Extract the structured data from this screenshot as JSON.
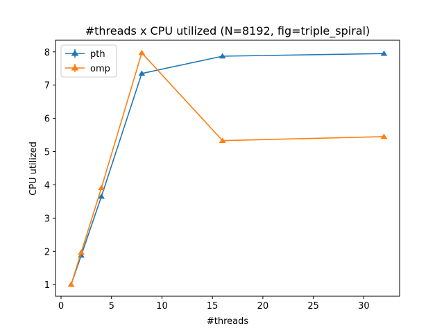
{
  "chart_data": {
    "type": "line",
    "title": "#threads x CPU utilized (N=8192, fig=triple_spiral)",
    "xlabel": "#threads",
    "ylabel": "CPU utilized",
    "xlim": [
      -0.55,
      33.55
    ],
    "ylim": [
      0.65,
      8.35
    ],
    "xticks": [
      0,
      5,
      10,
      15,
      20,
      25,
      30
    ],
    "yticks": [
      1,
      2,
      3,
      4,
      5,
      6,
      7,
      8
    ],
    "grid": false,
    "legend_position": "top-left",
    "marker": "triangle-up",
    "x": [
      1,
      2,
      4,
      8,
      16,
      32
    ],
    "series": [
      {
        "name": "pth",
        "color": "#1f77b4",
        "values": [
          1.0,
          1.88,
          3.65,
          7.35,
          7.87,
          7.95
        ]
      },
      {
        "name": "omp",
        "color": "#ff7f0e",
        "values": [
          1.0,
          1.97,
          3.91,
          7.97,
          5.33,
          5.45
        ]
      }
    ]
  }
}
